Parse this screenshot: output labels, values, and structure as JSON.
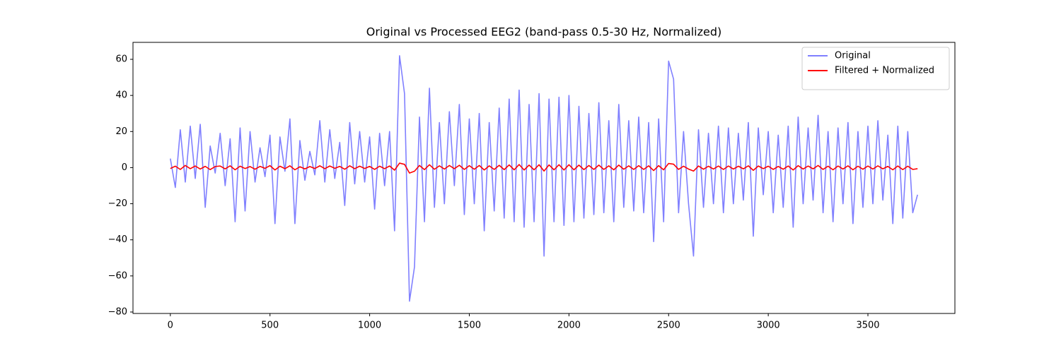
{
  "chart_data": {
    "type": "line",
    "title": "Original vs Processed EEG2 (band-pass 0.5-30 Hz, Normalized)",
    "x": [
      0,
      25,
      50,
      75,
      100,
      125,
      150,
      175,
      200,
      225,
      250,
      275,
      300,
      325,
      350,
      375,
      400,
      425,
      450,
      475,
      500,
      525,
      550,
      575,
      600,
      625,
      650,
      675,
      700,
      725,
      750,
      775,
      800,
      825,
      850,
      875,
      900,
      925,
      950,
      975,
      1000,
      1025,
      1050,
      1075,
      1100,
      1125,
      1150,
      1175,
      1200,
      1225,
      1250,
      1275,
      1300,
      1325,
      1350,
      1375,
      1400,
      1425,
      1450,
      1475,
      1500,
      1525,
      1550,
      1575,
      1600,
      1625,
      1650,
      1675,
      1700,
      1725,
      1750,
      1775,
      1800,
      1825,
      1850,
      1875,
      1900,
      1925,
      1950,
      1975,
      2000,
      2025,
      2050,
      2075,
      2100,
      2125,
      2150,
      2175,
      2200,
      2225,
      2250,
      2275,
      2300,
      2325,
      2350,
      2375,
      2400,
      2425,
      2450,
      2475,
      2500,
      2525,
      2550,
      2575,
      2600,
      2625,
      2650,
      2675,
      2700,
      2725,
      2750,
      2775,
      2800,
      2825,
      2850,
      2875,
      2900,
      2925,
      2950,
      2975,
      3000,
      3025,
      3050,
      3075,
      3100,
      3125,
      3150,
      3175,
      3200,
      3225,
      3250,
      3275,
      3300,
      3325,
      3350,
      3375,
      3400,
      3425,
      3450,
      3475,
      3500,
      3525,
      3550,
      3575,
      3600,
      3625,
      3650,
      3675,
      3700,
      3725,
      3749
    ],
    "series": [
      {
        "name": "Original",
        "color": "#8080ff",
        "values": [
          5,
          -11,
          21,
          -8,
          23,
          -6,
          24,
          -22,
          12,
          -3,
          19,
          -10,
          16,
          -30,
          22,
          -24,
          20,
          -8,
          11,
          -5,
          18,
          -31,
          17,
          -2,
          27,
          -31,
          15,
          -7,
          9,
          -4,
          26,
          -8,
          21,
          -6,
          14,
          -21,
          25,
          -9,
          20,
          -8,
          17,
          -23,
          19,
          -10,
          20,
          -35,
          62,
          41,
          -74,
          -55,
          28,
          -30,
          44,
          -22,
          25,
          -20,
          31,
          -10,
          35,
          -26,
          27,
          -20,
          30,
          -35,
          25,
          -24,
          33,
          -28,
          38,
          -30,
          43,
          -33,
          35,
          -30,
          41,
          -49,
          38,
          -30,
          39,
          -32,
          40,
          -30,
          34,
          -28,
          30,
          -26,
          36,
          -25,
          26,
          -30,
          35,
          -22,
          26,
          -24,
          28,
          -25,
          25,
          -41,
          27,
          -30,
          59,
          49,
          -25,
          20,
          -20,
          -49,
          21,
          -22,
          19,
          -20,
          23,
          -25,
          22,
          -20,
          19,
          -18,
          25,
          -38,
          22,
          -15,
          20,
          -25,
          18,
          -22,
          23,
          -33,
          28,
          -20,
          22,
          -18,
          29,
          -25,
          20,
          -30,
          22,
          -20,
          25,
          -31,
          20,
          -22,
          23,
          -20,
          26,
          -18,
          18,
          -31,
          23,
          -28,
          20,
          -25,
          -15
        ]
      },
      {
        "name": "Filtered + Normalized",
        "color": "#ff0000",
        "values": [
          -0.5,
          0.8,
          -1.0,
          1.2,
          -0.6,
          0.9,
          -0.8,
          0.7,
          -1.1,
          0.6,
          0.9,
          -0.7,
          1.0,
          -1.2,
          0.8,
          -0.5,
          0.6,
          -0.9,
          0.7,
          -0.4,
          1.1,
          -1.3,
          0.8,
          -0.6,
          1.0,
          -1.2,
          0.5,
          -0.7,
          0.6,
          -0.5,
          1.0,
          -0.6,
          0.9,
          -0.4,
          0.7,
          -0.9,
          1.0,
          -0.6,
          0.8,
          -0.5,
          0.7,
          -1.0,
          0.8,
          -0.6,
          0.9,
          -1.4,
          2.5,
          1.8,
          -3.0,
          -2.0,
          1.2,
          -1.1,
          1.6,
          -0.9,
          1.0,
          -0.8,
          1.2,
          -0.6,
          1.3,
          -1.0,
          1.1,
          -0.9,
          1.2,
          -1.3,
          1.0,
          -1.0,
          1.3,
          -1.1,
          1.5,
          -1.2,
          1.7,
          -1.3,
          1.4,
          -1.2,
          1.6,
          -1.9,
          1.5,
          -1.2,
          1.6,
          -1.3,
          1.6,
          -1.2,
          1.4,
          -1.1,
          1.2,
          -1.0,
          1.4,
          -1.0,
          1.0,
          -1.2,
          1.4,
          -0.9,
          1.0,
          -1.0,
          1.1,
          -1.0,
          1.0,
          -1.6,
          1.1,
          -1.2,
          2.3,
          1.9,
          -1.0,
          0.8,
          -0.8,
          -1.9,
          0.9,
          -0.9,
          0.8,
          -0.8,
          0.9,
          -1.0,
          0.9,
          -0.8,
          0.8,
          -0.7,
          1.0,
          -1.5,
          0.9,
          -0.6,
          0.8,
          -1.0,
          0.7,
          -0.9,
          0.9,
          -1.3,
          1.1,
          -0.8,
          0.9,
          -0.7,
          1.2,
          -1.0,
          0.8,
          -1.2,
          0.9,
          -0.8,
          1.0,
          -1.2,
          0.8,
          -0.9,
          0.9,
          -0.8,
          1.0,
          -0.7,
          0.7,
          -1.2,
          0.9,
          -1.1,
          0.8,
          -1.0,
          -0.6
        ]
      }
    ],
    "xlim": [
      -187.45,
      3936.45
    ],
    "xticks": [
      0,
      500,
      1000,
      1500,
      2000,
      2500,
      3000,
      3500
    ],
    "ylim": [
      -80.8,
      69.4
    ],
    "yticks": [
      {
        "value": -80,
        "label": "−80"
      },
      {
        "value": -60,
        "label": "−60"
      },
      {
        "value": -40,
        "label": "−40"
      },
      {
        "value": -20,
        "label": "−20"
      },
      0,
      20,
      40,
      60
    ],
    "legend": "upper right",
    "grid": false
  }
}
